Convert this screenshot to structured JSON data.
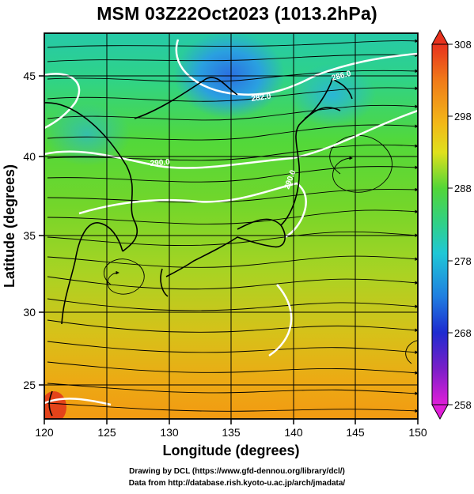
{
  "title": "MSM 03Z22Oct2023 (1013.2hPa)",
  "xlabel": "Longitude (degrees)",
  "ylabel": "Latitude  (degrees)",
  "credits": {
    "line1": "Drawing by DCL (https://www.gfd-dennou.org/library/dcl/)",
    "line2": "Data from http://database.rish.kyoto-u.ac.jp/arch/jmadata/"
  },
  "map": {
    "lon_range": [
      120,
      150
    ],
    "lat_range": [
      22.4,
      47.6
    ],
    "lon_ticks": [
      120,
      125,
      130,
      135,
      140,
      145,
      150
    ],
    "lat_ticks": [
      25,
      30,
      35,
      40,
      45
    ],
    "contour_labels": [
      "282.0",
      "286.0",
      "290.0",
      "290.0"
    ]
  },
  "colorbar": {
    "min": 258,
    "max": 308,
    "tick_labels": [
      "308",
      "298",
      "288",
      "278",
      "268",
      "258"
    ],
    "tick_values": [
      308,
      298,
      288,
      278,
      268,
      258
    ]
  }
}
